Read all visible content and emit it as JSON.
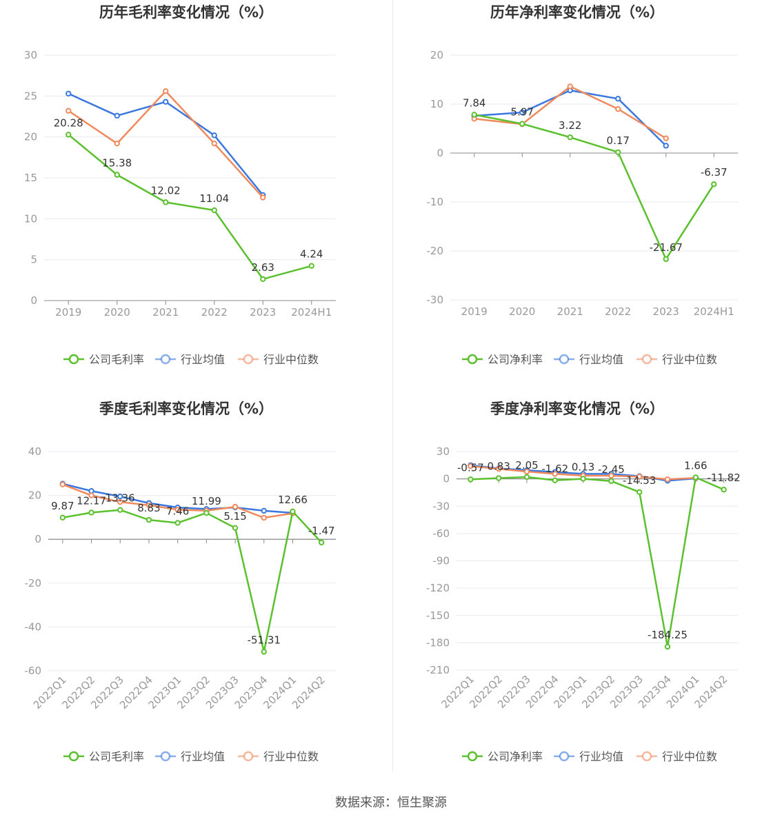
{
  "source": "数据来源：恒生聚源",
  "legend_colors": {
    "company": "#5ac12d",
    "avg": "#3a78e0",
    "median": "#f08a5d"
  },
  "chart_data": [
    {
      "type": "line",
      "title": "历年毛利率变化情况（%）",
      "categories": [
        "2019",
        "2020",
        "2021",
        "2022",
        "2023",
        "2024H1"
      ],
      "ylim": [
        0,
        30
      ],
      "yticks": [
        0,
        5,
        10,
        15,
        20,
        25,
        30
      ],
      "series": [
        {
          "name": "公司毛利率",
          "key": "company",
          "values": [
            20.28,
            15.38,
            12.02,
            11.04,
            2.63,
            4.24
          ],
          "labels": [
            "20.28",
            "15.38",
            "12.02",
            "11.04",
            "2.63",
            "4.24"
          ]
        },
        {
          "name": "行业均值",
          "key": "avg",
          "values": [
            25.3,
            22.6,
            24.3,
            20.2,
            12.9,
            null
          ]
        },
        {
          "name": "行业中位数",
          "key": "median",
          "values": [
            23.2,
            19.2,
            25.6,
            19.2,
            12.6,
            null
          ]
        }
      ]
    },
    {
      "type": "line",
      "title": "历年净利率变化情况（%）",
      "categories": [
        "2019",
        "2020",
        "2021",
        "2022",
        "2023",
        "2024H1"
      ],
      "ylim": [
        -30,
        20
      ],
      "yticks": [
        -30,
        -20,
        -10,
        0,
        10,
        20
      ],
      "series": [
        {
          "name": "公司净利率",
          "key": "company",
          "values": [
            7.84,
            5.97,
            3.22,
            0.17,
            -21.67,
            -6.37
          ],
          "labels": [
            "7.84",
            "5.97",
            "3.22",
            "0.17",
            "-21.67",
            "-6.37"
          ]
        },
        {
          "name": "行业均值",
          "key": "avg",
          "values": [
            7.6,
            8.3,
            12.8,
            11.1,
            1.5,
            null
          ]
        },
        {
          "name": "行业中位数",
          "key": "median",
          "values": [
            7.0,
            5.9,
            13.6,
            9.0,
            3.0,
            null
          ]
        }
      ]
    },
    {
      "type": "line",
      "title": "季度毛利率变化情况（%）",
      "categories": [
        "2022Q1",
        "2022Q2",
        "2022Q3",
        "2022Q4",
        "2023Q1",
        "2023Q2",
        "2023Q3",
        "2023Q4",
        "2024Q1",
        "2024Q2"
      ],
      "ylim": [
        -60,
        40
      ],
      "yticks": [
        -60,
        -40,
        -20,
        0,
        20,
        40
      ],
      "series": [
        {
          "name": "公司毛利率",
          "key": "company",
          "values": [
            9.87,
            12.17,
            13.36,
            8.83,
            7.46,
            11.99,
            5.15,
            -51.31,
            12.66,
            -1.47
          ],
          "labels": [
            "9.87",
            "12.17",
            "13.36",
            "8.83",
            "7.46",
            "11.99",
            "5.15",
            "-51.31",
            "12.66",
            "-1.47"
          ]
        },
        {
          "name": "行业均值",
          "key": "avg",
          "values": [
            25.3,
            22.0,
            19.5,
            16.5,
            14.5,
            13.8,
            14.5,
            13.0,
            12.0,
            null
          ]
        },
        {
          "name": "行业中位数",
          "key": "median",
          "values": [
            25.0,
            20.0,
            17.0,
            15.5,
            13.5,
            13.0,
            14.8,
            9.8,
            11.8,
            null
          ]
        }
      ]
    },
    {
      "type": "line",
      "title": "季度净利率变化情况（%）",
      "categories": [
        "2022Q1",
        "2022Q2",
        "2022Q3",
        "2022Q4",
        "2023Q1",
        "2023Q2",
        "2023Q3",
        "2023Q4",
        "2024Q1",
        "2024Q2"
      ],
      "ylim": [
        -210,
        30
      ],
      "yticks": [
        -210,
        -180,
        -150,
        -120,
        -90,
        -60,
        -30,
        0,
        30
      ],
      "series": [
        {
          "name": "公司净利率",
          "key": "company",
          "values": [
            -0.57,
            0.83,
            2.05,
            -1.62,
            0.13,
            -2.45,
            -14.53,
            -184.25,
            1.66,
            -11.82
          ],
          "labels": [
            "-0.57",
            "0.83",
            "2.05",
            "-1.62",
            "0.13",
            "-2.45",
            "-14.53",
            "-184.25",
            "1.66",
            "-11.82"
          ]
        },
        {
          "name": "行业均值",
          "key": "avg",
          "values": [
            15.0,
            11.5,
            9.5,
            7.5,
            5.5,
            5.5,
            3.0,
            -2.0,
            0.5,
            null
          ]
        },
        {
          "name": "行业中位数",
          "key": "median",
          "values": [
            14.0,
            11.0,
            8.0,
            5.5,
            3.5,
            3.5,
            2.5,
            -0.5,
            1.0,
            null
          ]
        }
      ]
    }
  ]
}
